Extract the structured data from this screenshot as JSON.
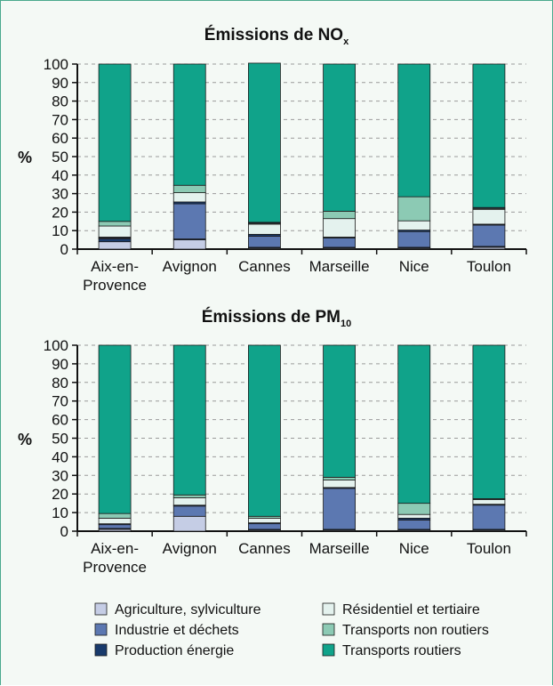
{
  "colors": {
    "Agriculture, sylviculture": "#c5cde5",
    "Industrie et déchets": "#5c78b1",
    "Production énergie": "#183a6b",
    "Résidentiel et tertiaire": "#e4f2ee",
    "Transports non routiers": "#8ccab4",
    "Transports routiers": "#10a38a",
    "frame": "#4aa98d",
    "background": "#f4f9f5"
  },
  "legend": {
    "items": [
      "Agriculture, sylviculture",
      "Industrie et déchets",
      "Production énergie",
      "Résidentiel et tertiaire",
      "Transports non routiers",
      "Transports routiers"
    ]
  },
  "chart_data": [
    {
      "type": "bar",
      "stacked": true,
      "title_main": "Émissions de NO",
      "title_sub": "x",
      "ylabel": "%",
      "ylim": [
        0,
        100
      ],
      "yticks": [
        0,
        10,
        20,
        30,
        40,
        50,
        60,
        70,
        80,
        90,
        100
      ],
      "grid": true,
      "categories": [
        [
          "Aix-en-",
          "Provence"
        ],
        [
          "Avignon"
        ],
        [
          "Cannes"
        ],
        [
          "Marseille"
        ],
        [
          "Nice"
        ],
        [
          "Toulon"
        ]
      ],
      "series": [
        {
          "name": "Agriculture, sylviculture",
          "values": [
            4,
            5,
            0.5,
            0.5,
            0.5,
            1
          ]
        },
        {
          "name": "Production énergie",
          "values": [
            1.5,
            0.5,
            0.5,
            0.5,
            0.5,
            0.5
          ]
        },
        {
          "name": "Industrie et déchets",
          "values": [
            0.5,
            19,
            6,
            5,
            8.5,
            11.5
          ]
        },
        {
          "name": "Production énergie",
          "values": [
            0.5,
            1,
            1,
            0.5,
            0.8,
            0.5
          ]
        },
        {
          "name": "Résidentiel et tertiaire",
          "values": [
            6,
            5,
            5.5,
            10,
            5,
            8
          ]
        },
        {
          "name": "Transports non routiers",
          "values": [
            2.5,
            4,
            0.5,
            4,
            13,
            0.5
          ]
        },
        {
          "name": "Production énergie",
          "values": [
            0,
            0,
            0.5,
            0,
            0,
            0.5
          ]
        },
        {
          "name": "Transports routiers",
          "values": [
            85,
            65.5,
            86,
            79.5,
            71.7,
            77.5
          ]
        }
      ]
    },
    {
      "type": "bar",
      "stacked": true,
      "title_main": "Émissions de PM",
      "title_sub": "10",
      "ylabel": "%",
      "ylim": [
        0,
        100
      ],
      "yticks": [
        0,
        10,
        20,
        30,
        40,
        50,
        60,
        70,
        80,
        90,
        100
      ],
      "grid": true,
      "categories": [
        [
          "Aix-en-",
          "Provence"
        ],
        [
          "Avignon"
        ],
        [
          "Cannes"
        ],
        [
          "Marseille"
        ],
        [
          "Nice"
        ],
        [
          "Toulon"
        ]
      ],
      "series": [
        {
          "name": "Agriculture, sylviculture",
          "values": [
            1,
            8,
            0.5,
            0.5,
            0.5,
            0.5
          ]
        },
        {
          "name": "Production énergie",
          "values": [
            0.5,
            0,
            0.5,
            0.5,
            0.5,
            0.5
          ]
        },
        {
          "name": "Industrie et déchets",
          "values": [
            2,
            5.5,
            3,
            22,
            5,
            13
          ]
        },
        {
          "name": "Production énergie",
          "values": [
            0.5,
            0.5,
            0.5,
            0.5,
            1,
            0.5
          ]
        },
        {
          "name": "Résidentiel et tertiaire",
          "values": [
            3,
            4,
            2.5,
            4,
            2,
            2.5
          ]
        },
        {
          "name": "Transports non routiers",
          "values": [
            2.5,
            1.5,
            1,
            1.5,
            6,
            0.5
          ]
        },
        {
          "name": "Transports routiers",
          "values": [
            90.5,
            80.5,
            92,
            71,
            85,
            82.5
          ]
        }
      ]
    }
  ]
}
